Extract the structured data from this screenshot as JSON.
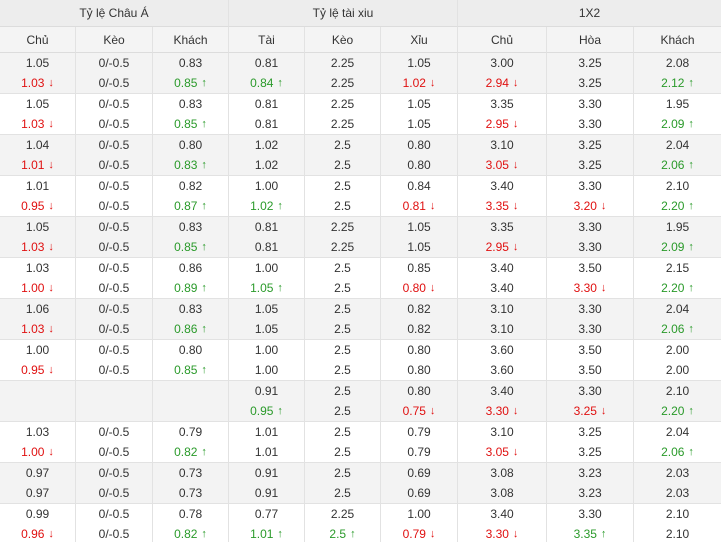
{
  "table": {
    "group_headers": [
      "Tỷ lệ Châu Á",
      "Tỷ lệ tài xiu",
      "1X2"
    ],
    "columns": [
      "Chủ",
      "Kèo",
      "Khách",
      "Tài",
      "Kèo",
      "Xỉu",
      "Chủ",
      "Hòa",
      "Khách"
    ],
    "rows": [
      [
        "1.05",
        "0/-0.5",
        "0.83",
        "0.81",
        "2.25",
        "1.05",
        "3.00",
        "3.25",
        "2.08"
      ],
      [
        {
          "text": "1.03",
          "trend": "down"
        },
        "0/-0.5",
        {
          "text": "0.85",
          "trend": "up"
        },
        {
          "text": "0.84",
          "trend": "up"
        },
        "2.25",
        {
          "text": "1.02",
          "trend": "down"
        },
        {
          "text": "2.94",
          "trend": "down"
        },
        "3.25",
        {
          "text": "2.12",
          "trend": "up"
        }
      ],
      [
        "1.05",
        "0/-0.5",
        "0.83",
        "0.81",
        "2.25",
        "1.05",
        "3.35",
        "3.30",
        "1.95"
      ],
      [
        {
          "text": "1.03",
          "trend": "down"
        },
        "0/-0.5",
        {
          "text": "0.85",
          "trend": "up"
        },
        "0.81",
        "2.25",
        "1.05",
        {
          "text": "2.95",
          "trend": "down"
        },
        "3.30",
        {
          "text": "2.09",
          "trend": "up"
        }
      ],
      [
        "1.04",
        "0/-0.5",
        "0.80",
        "1.02",
        "2.5",
        "0.80",
        "3.10",
        "3.25",
        "2.04"
      ],
      [
        {
          "text": "1.01",
          "trend": "down"
        },
        "0/-0.5",
        {
          "text": "0.83",
          "trend": "up"
        },
        "1.02",
        "2.5",
        "0.80",
        {
          "text": "3.05",
          "trend": "down"
        },
        "3.25",
        {
          "text": "2.06",
          "trend": "up"
        }
      ],
      [
        "1.01",
        "0/-0.5",
        "0.82",
        "1.00",
        "2.5",
        "0.84",
        "3.40",
        "3.30",
        "2.10"
      ],
      [
        {
          "text": "0.95",
          "trend": "down"
        },
        "0/-0.5",
        {
          "text": "0.87",
          "trend": "up"
        },
        {
          "text": "1.02",
          "trend": "up"
        },
        "2.5",
        {
          "text": "0.81",
          "trend": "down"
        },
        {
          "text": "3.35",
          "trend": "down"
        },
        {
          "text": "3.20",
          "trend": "down"
        },
        {
          "text": "2.20",
          "trend": "up"
        }
      ],
      [
        "1.05",
        "0/-0.5",
        "0.83",
        "0.81",
        "2.25",
        "1.05",
        "3.35",
        "3.30",
        "1.95"
      ],
      [
        {
          "text": "1.03",
          "trend": "down"
        },
        "0/-0.5",
        {
          "text": "0.85",
          "trend": "up"
        },
        "0.81",
        "2.25",
        "1.05",
        {
          "text": "2.95",
          "trend": "down"
        },
        "3.30",
        {
          "text": "2.09",
          "trend": "up"
        }
      ],
      [
        "1.03",
        "0/-0.5",
        "0.86",
        "1.00",
        "2.5",
        "0.85",
        "3.40",
        "3.50",
        "2.15"
      ],
      [
        {
          "text": "1.00",
          "trend": "down"
        },
        "0/-0.5",
        {
          "text": "0.89",
          "trend": "up"
        },
        {
          "text": "1.05",
          "trend": "up"
        },
        "2.5",
        {
          "text": "0.80",
          "trend": "down"
        },
        "3.40",
        {
          "text": "3.30",
          "trend": "down"
        },
        {
          "text": "2.20",
          "trend": "up"
        }
      ],
      [
        "1.06",
        "0/-0.5",
        "0.83",
        "1.05",
        "2.5",
        "0.82",
        "3.10",
        "3.30",
        "2.04"
      ],
      [
        {
          "text": "1.03",
          "trend": "down"
        },
        "0/-0.5",
        {
          "text": "0.86",
          "trend": "up"
        },
        "1.05",
        "2.5",
        "0.82",
        "3.10",
        "3.30",
        {
          "text": "2.06",
          "trend": "up"
        }
      ],
      [
        "1.00",
        "0/-0.5",
        "0.80",
        "1.00",
        "2.5",
        "0.80",
        "3.60",
        "3.50",
        "2.00"
      ],
      [
        {
          "text": "0.95",
          "trend": "down"
        },
        "0/-0.5",
        {
          "text": "0.85",
          "trend": "up"
        },
        "1.00",
        "2.5",
        "0.80",
        "3.60",
        "3.50",
        "2.00"
      ],
      [
        null,
        null,
        null,
        "0.91",
        "2.5",
        "0.80",
        "3.40",
        "3.30",
        "2.10"
      ],
      [
        null,
        null,
        null,
        {
          "text": "0.95",
          "trend": "up"
        },
        "2.5",
        {
          "text": "0.75",
          "trend": "down"
        },
        {
          "text": "3.30",
          "trend": "down"
        },
        {
          "text": "3.25",
          "trend": "down"
        },
        {
          "text": "2.20",
          "trend": "up"
        }
      ],
      [
        "1.03",
        "0/-0.5",
        "0.79",
        "1.01",
        "2.5",
        "0.79",
        "3.10",
        "3.25",
        "2.04"
      ],
      [
        {
          "text": "1.00",
          "trend": "down"
        },
        "0/-0.5",
        {
          "text": "0.82",
          "trend": "up"
        },
        "1.01",
        "2.5",
        "0.79",
        {
          "text": "3.05",
          "trend": "down"
        },
        "3.25",
        {
          "text": "2.06",
          "trend": "up"
        }
      ],
      [
        "0.97",
        "0/-0.5",
        "0.73",
        "0.91",
        "2.5",
        "0.69",
        "3.08",
        "3.23",
        "2.03"
      ],
      [
        "0.97",
        "0/-0.5",
        "0.73",
        "0.91",
        "2.5",
        "0.69",
        "3.08",
        "3.23",
        "2.03"
      ],
      [
        "0.99",
        "0/-0.5",
        "0.78",
        "0.77",
        "2.25",
        "1.00",
        "3.40",
        "3.30",
        "2.10"
      ],
      [
        {
          "text": "0.96",
          "trend": "down"
        },
        "0/-0.5",
        {
          "text": "0.82",
          "trend": "up"
        },
        {
          "text": "1.01",
          "trend": "up"
        },
        {
          "text": "2.5",
          "trend": "up"
        },
        {
          "text": "0.79",
          "trend": "down"
        },
        {
          "text": "3.30",
          "trend": "down"
        },
        {
          "text": "3.35",
          "trend": "up"
        },
        "2.10"
      ]
    ]
  }
}
